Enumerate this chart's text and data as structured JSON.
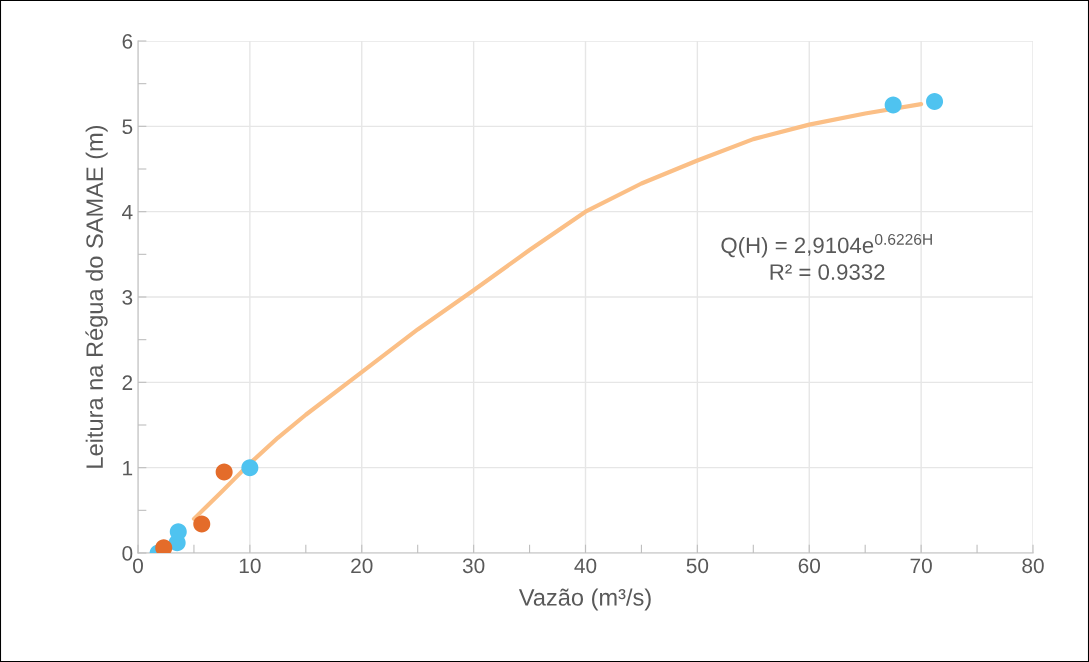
{
  "chart_data": {
    "type": "scatter",
    "xlabel": "Vazão (m³/s)",
    "ylabel": "Leitura na Régua do SAMAE (m)",
    "xlim": [
      0,
      80
    ],
    "ylim": [
      0,
      6
    ],
    "xticks": [
      0,
      {
        "value": 5,
        "label": null
      },
      10,
      {
        "value": 15,
        "label": null
      },
      20,
      {
        "value": 25,
        "label": null
      },
      30,
      {
        "value": 35,
        "label": null
      },
      40,
      {
        "value": 45,
        "label": null
      },
      50,
      {
        "value": 55,
        "label": null
      },
      60,
      {
        "value": 65,
        "label": null
      },
      70,
      {
        "value": 75,
        "label": null
      },
      80
    ],
    "yticks": [
      0,
      {
        "value": 0.5,
        "label": null
      },
      1,
      {
        "value": 1.5,
        "label": null
      },
      2,
      {
        "value": 2.5,
        "label": null
      },
      3,
      {
        "value": 3.5,
        "label": null
      },
      4,
      {
        "value": 4.5,
        "label": null
      },
      5,
      {
        "value": 5.5,
        "label": null
      },
      6
    ],
    "grid": true,
    "series": [
      {
        "type": "line",
        "marker": "none",
        "color": "#fbbf86",
        "x": [
          5,
          7.5,
          10,
          12.5,
          15,
          20,
          25,
          30,
          35,
          40,
          45,
          50,
          55,
          60,
          65,
          70
        ],
        "values": [
          0.4,
          0.72,
          1.05,
          1.35,
          1.62,
          2.12,
          2.62,
          3.08,
          3.55,
          4.0,
          4.33,
          4.6,
          4.85,
          5.02,
          5.15,
          5.26
        ]
      },
      {
        "marker": "circle",
        "color": "#4fc3f0",
        "x": [
          1.8,
          3.5,
          3.6,
          10.0,
          67.5,
          71.2
        ],
        "values": [
          0.0,
          0.12,
          0.25,
          1.0,
          5.25,
          5.29
        ]
      },
      {
        "marker": "circle",
        "color": "#e46c2a",
        "x": [
          2.3,
          5.7,
          7.7
        ],
        "values": [
          0.06,
          0.34,
          0.95
        ]
      }
    ],
    "annotations": [
      "Q(H) = 2,9104e$^{0.6226H}$",
      "R² = 0.9332"
    ]
  }
}
